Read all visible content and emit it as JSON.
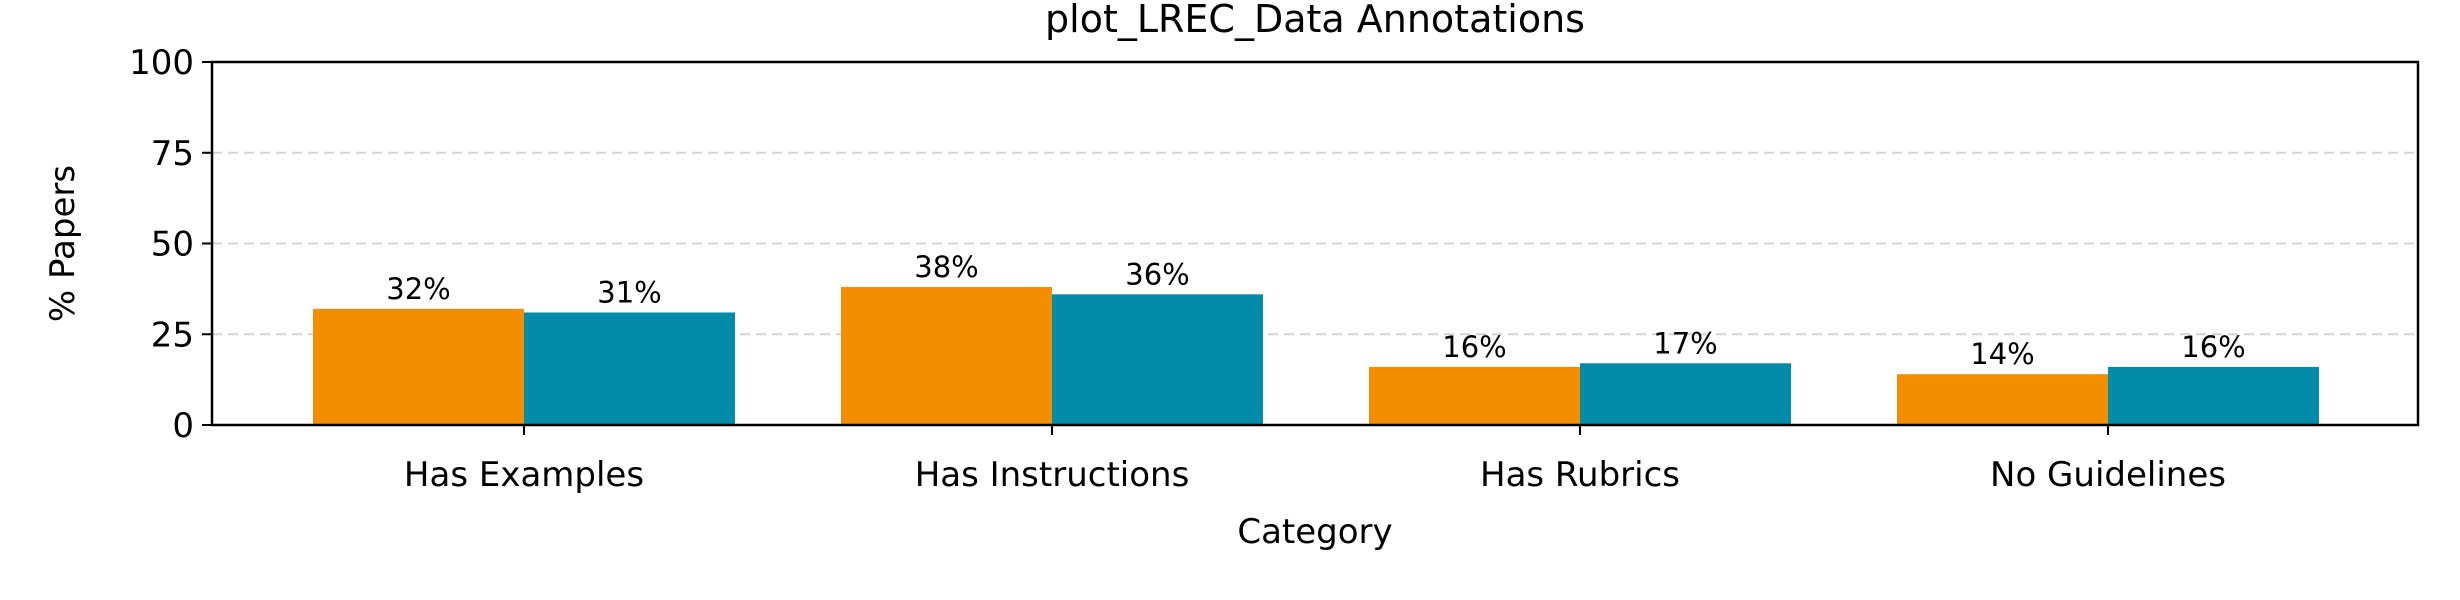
{
  "chart_data": {
    "type": "bar",
    "title": "plot_LREC_Data Annotations",
    "xlabel": "Category",
    "ylabel": "% Papers",
    "categories": [
      "Has Examples",
      "Has Instructions",
      "Has Rubrics",
      "No Guidelines"
    ],
    "series": [
      {
        "values": [
          32,
          38,
          16,
          14
        ],
        "labels": [
          "32%",
          "38%",
          "16%",
          "14%"
        ],
        "color": "#F28E00"
      },
      {
        "values": [
          31,
          36,
          17,
          16
        ],
        "labels": [
          "31%",
          "36%",
          "17%",
          "16%"
        ],
        "color": "#048BA8"
      }
    ],
    "ylim": [
      0,
      100
    ],
    "yticks": [
      0,
      25,
      50,
      75,
      100
    ],
    "grid": true,
    "legend": "none"
  }
}
